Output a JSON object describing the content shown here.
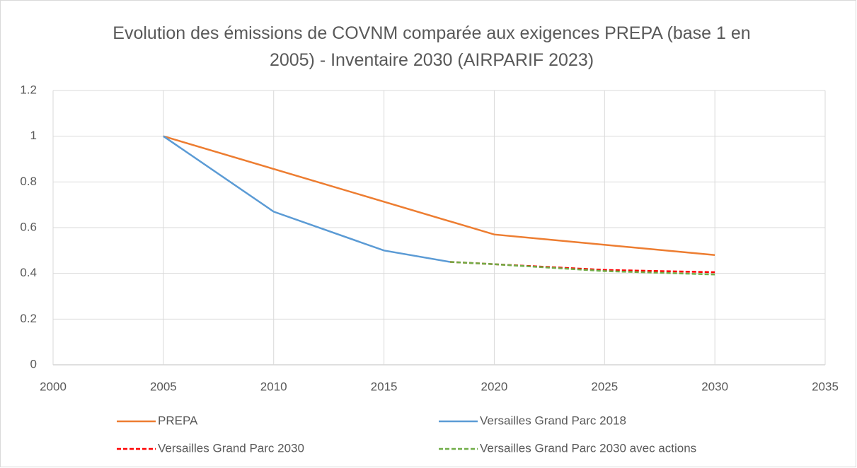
{
  "chart_data": {
    "type": "line",
    "title": "Evolution des émissions de COVNM comparée aux exigences PREPA (base 1 en 2005) - Inventaire 2030 (AIRPARIF 2023)",
    "xlim": [
      2000,
      2035
    ],
    "xticks": [
      2000,
      2005,
      2010,
      2015,
      2020,
      2025,
      2030,
      2035
    ],
    "ylim": [
      0,
      1.2
    ],
    "yticks": [
      0,
      0.2,
      0.4,
      0.6,
      0.8,
      1,
      1.2
    ],
    "grid": true,
    "legend": "bottom",
    "series": [
      {
        "name": "PREPA",
        "color": "#ED7D31",
        "dashed": false,
        "x": [
          2005,
          2020,
          2030
        ],
        "values": [
          1,
          0.57,
          0.48
        ]
      },
      {
        "name": "Versailles Grand Parc 2018",
        "color": "#5B9BD5",
        "dashed": false,
        "x": [
          2005,
          2010,
          2015,
          2018
        ],
        "values": [
          1,
          0.67,
          0.5,
          0.45
        ]
      },
      {
        "name": "Versailles Grand Parc 2030",
        "color": "#FF0000",
        "dashed": true,
        "x": [
          2018,
          2020,
          2025,
          2030
        ],
        "values": [
          0.45,
          0.44,
          0.415,
          0.405
        ]
      },
      {
        "name": "Versailles Grand Parc 2030 avec actions",
        "color": "#70AD47",
        "dashed": true,
        "x": [
          2018,
          2020,
          2025,
          2030
        ],
        "values": [
          0.45,
          0.44,
          0.41,
          0.395
        ]
      }
    ]
  }
}
